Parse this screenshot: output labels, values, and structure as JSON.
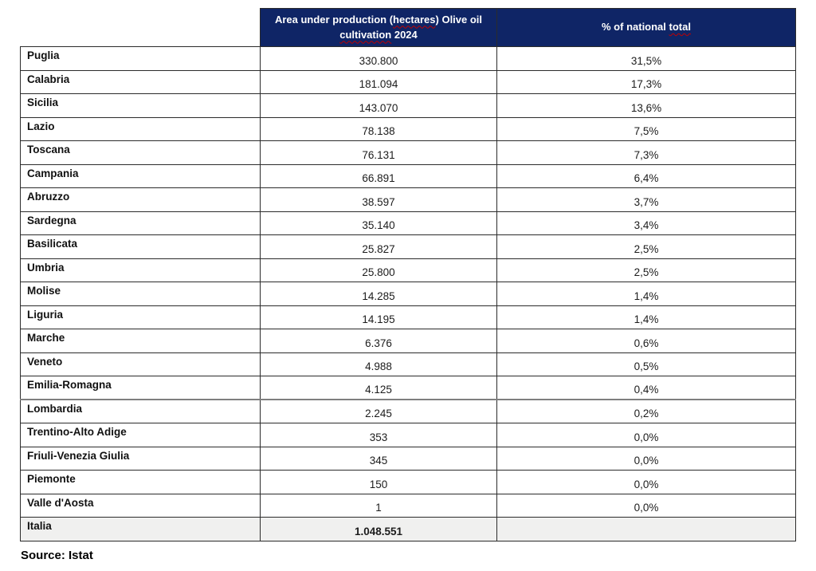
{
  "table": {
    "columns": [
      {
        "label": "",
        "squiggle_words": []
      },
      {
        "label": "Area under production (hectares) Olive oil cultivation 2024",
        "squiggle_words": [
          "hectares",
          "cultivation"
        ]
      },
      {
        "label": "% of national total",
        "squiggle_words": [
          "total"
        ]
      }
    ],
    "rows": [
      {
        "region": "Puglia",
        "area": "330.800",
        "pct": "31,5%"
      },
      {
        "region": "Calabria",
        "area": "181.094",
        "pct": "17,3%"
      },
      {
        "region": "Sicilia",
        "area": "143.070",
        "pct": "13,6%"
      },
      {
        "region": "Lazio",
        "area": "78.138",
        "pct": "7,5%"
      },
      {
        "region": "Toscana",
        "area": "76.131",
        "pct": "7,3%"
      },
      {
        "region": "Campania",
        "area": "66.891",
        "pct": "6,4%"
      },
      {
        "region": "Abruzzo",
        "area": "38.597",
        "pct": "3,7%"
      },
      {
        "region": "Sardegna",
        "area": "35.140",
        "pct": "3,4%"
      },
      {
        "region": "Basilicata",
        "area": "25.827",
        "pct": "2,5%"
      },
      {
        "region": "Umbria",
        "area": "25.800",
        "pct": "2,5%"
      },
      {
        "region": "Molise",
        "area": "14.285",
        "pct": "1,4%"
      },
      {
        "region": "Liguria",
        "area": "14.195",
        "pct": "1,4%"
      },
      {
        "region": "Marche",
        "area": "6.376",
        "pct": "0,6%"
      },
      {
        "region": "Veneto",
        "area": "4.988",
        "pct": "0,5%"
      },
      {
        "region": "Emilia-Romagna",
        "area": "4.125",
        "pct": "0,4%"
      },
      {
        "region": "Lombardia",
        "area": "2.245",
        "pct": "0,2%"
      },
      {
        "region": "Trentino-Alto Adige",
        "area": "353",
        "pct": "0,0%"
      },
      {
        "region": "Friuli-Venezia Giulia",
        "area": "345",
        "pct": "0,0%"
      },
      {
        "region": "Piemonte",
        "area": "150",
        "pct": "0,0%"
      },
      {
        "region": "Valle d'Aosta",
        "area": "1",
        "pct": "0,0%"
      }
    ],
    "total_row": {
      "region": "Italia",
      "area": "1.048.551",
      "pct": ""
    }
  },
  "source_note": "Source: Istat",
  "colors": {
    "header_bg": "#0f2566",
    "header_text": "#ffffff",
    "total_row_bg": "#f0f0ef",
    "border": "#2b2b2b",
    "squiggle": "#c00000"
  }
}
